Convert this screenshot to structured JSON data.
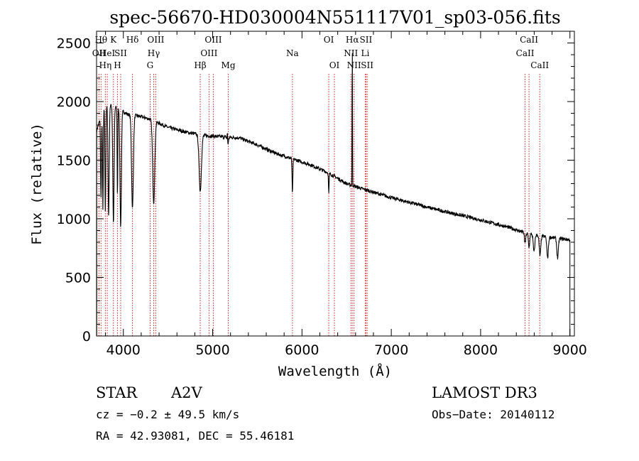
{
  "chart_data": {
    "type": "line",
    "title": "spec-56670-HD030004N551117V01_sp03-056.fits",
    "xlabel": "Wavelength (Å)",
    "ylabel": "Flux (relative)",
    "xlim": [
      3700,
      9050
    ],
    "ylim": [
      0,
      2600
    ],
    "xticks": [
      4000,
      5000,
      6000,
      7000,
      8000,
      9000
    ],
    "yticks": [
      0,
      500,
      1000,
      1500,
      2000,
      2500
    ],
    "series": [
      {
        "name": "flux",
        "continuum": [
          [
            3700,
            1750
          ],
          [
            3780,
            1950
          ],
          [
            3850,
            1970
          ],
          [
            3950,
            1940
          ],
          [
            4050,
            1890
          ],
          [
            4150,
            1880
          ],
          [
            4300,
            1850
          ],
          [
            4500,
            1780
          ],
          [
            4700,
            1740
          ],
          [
            4900,
            1710
          ],
          [
            5100,
            1700
          ],
          [
            5300,
            1690
          ],
          [
            5500,
            1630
          ],
          [
            5700,
            1560
          ],
          [
            5900,
            1510
          ],
          [
            6100,
            1460
          ],
          [
            6300,
            1390
          ],
          [
            6500,
            1300
          ],
          [
            6700,
            1250
          ],
          [
            7000,
            1180
          ],
          [
            7500,
            1080
          ],
          [
            8000,
            990
          ],
          [
            8300,
            930
          ],
          [
            8500,
            880
          ],
          [
            8700,
            850
          ],
          [
            9000,
            820
          ]
        ],
        "absorption": [
          {
            "w": 3750,
            "depth": 700,
            "width": 7
          },
          {
            "w": 3771,
            "depth": 850,
            "width": 6
          },
          {
            "w": 3798,
            "depth": 900,
            "width": 7
          },
          {
            "w": 3835,
            "depth": 950,
            "width": 9
          },
          {
            "w": 3889,
            "depth": 1000,
            "width": 10
          },
          {
            "w": 3934,
            "depth": 750,
            "width": 5
          },
          {
            "w": 3970,
            "depth": 1000,
            "width": 11
          },
          {
            "w": 4102,
            "depth": 800,
            "width": 14
          },
          {
            "w": 4340,
            "depth": 700,
            "width": 16
          },
          {
            "w": 4861,
            "depth": 480,
            "width": 18
          },
          {
            "w": 5170,
            "depth": 60,
            "width": 10
          },
          {
            "w": 5893,
            "depth": 300,
            "width": 6
          },
          {
            "w": 6300,
            "depth": 180,
            "width": 5
          },
          {
            "w": 8498,
            "depth": 90,
            "width": 10
          },
          {
            "w": 8542,
            "depth": 120,
            "width": 10
          },
          {
            "w": 8598,
            "depth": 150,
            "width": 12
          },
          {
            "w": 8665,
            "depth": 170,
            "width": 12
          },
          {
            "w": 8750,
            "depth": 180,
            "width": 12
          },
          {
            "w": 8862,
            "depth": 170,
            "width": 12
          }
        ],
        "emission": [
          {
            "w": 6563,
            "height": 1250,
            "width": 3
          },
          {
            "w": 5165,
            "height": 90,
            "width": 3
          }
        ]
      }
    ],
    "line_ids": [
      {
        "w": 3727,
        "label": "OII",
        "row": 1
      },
      {
        "w": 3750,
        "label": "Hθ",
        "row": 0
      },
      {
        "w": 3798,
        "label": "Hη",
        "row": 2
      },
      {
        "w": 3820,
        "label": "HeI",
        "row": 1
      },
      {
        "w": 3889,
        "label": "K",
        "row": 0
      },
      {
        "w": 3934,
        "label": "H",
        "row": 2
      },
      {
        "w": 3970,
        "label": "SII",
        "row": 1
      },
      {
        "w": 4102,
        "label": "Hδ",
        "row": 0
      },
      {
        "w": 4300,
        "label": "G",
        "row": 2
      },
      {
        "w": 4340,
        "label": "Hγ",
        "row": 1
      },
      {
        "w": 4363,
        "label": "OIII",
        "row": 0
      },
      {
        "w": 4861,
        "label": "Hβ",
        "row": 2
      },
      {
        "w": 4959,
        "label": "OIII",
        "row": 1
      },
      {
        "w": 5007,
        "label": "OIII",
        "row": 0
      },
      {
        "w": 5175,
        "label": "Mg",
        "row": 2
      },
      {
        "w": 5893,
        "label": "Na",
        "row": 1
      },
      {
        "w": 6300,
        "label": "OI",
        "row": 0
      },
      {
        "w": 6363,
        "label": "OI",
        "row": 2
      },
      {
        "w": 6548,
        "label": "NII",
        "row": 1
      },
      {
        "w": 6563,
        "label": "Hα",
        "row": 0
      },
      {
        "w": 6583,
        "label": "NII",
        "row": 2
      },
      {
        "w": 6708,
        "label": "Li",
        "row": 1
      },
      {
        "w": 6716,
        "label": "SII",
        "row": 0
      },
      {
        "w": 6730,
        "label": "SII",
        "row": 2
      },
      {
        "w": 8498,
        "label": "CaII",
        "row": 1
      },
      {
        "w": 8542,
        "label": "CaII",
        "row": 0
      },
      {
        "w": 8662,
        "label": "CaII",
        "row": 2
      }
    ]
  },
  "info": {
    "object_class": "STAR",
    "subclass": "A2V",
    "survey": "LAMOST DR3",
    "cz": "cz = −0.2 ± 49.5 km/s",
    "obs_date": "Obs−Date: 20140112",
    "coords": "RA =  42.93081, DEC =  55.46181"
  },
  "colors": {
    "spectrum": "#000000",
    "line_marker": "#cc2222"
  }
}
